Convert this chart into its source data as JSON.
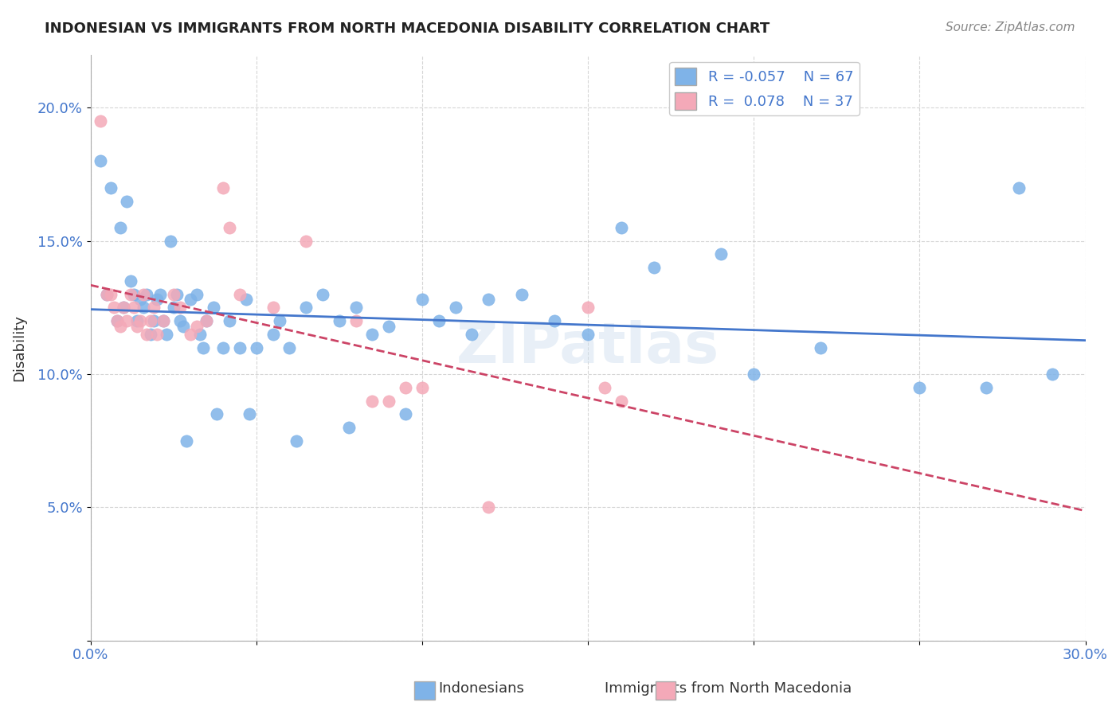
{
  "title": "INDONESIAN VS IMMIGRANTS FROM NORTH MACEDONIA DISABILITY CORRELATION CHART",
  "source": "Source: ZipAtlas.com",
  "ylabel": "Disability",
  "xlabel": "",
  "xlim": [
    0.0,
    0.3
  ],
  "ylim": [
    0.0,
    0.22
  ],
  "xticks": [
    0.0,
    0.05,
    0.1,
    0.15,
    0.2,
    0.25,
    0.3
  ],
  "yticks": [
    0.0,
    0.05,
    0.1,
    0.15,
    0.2
  ],
  "ytick_labels": [
    "",
    "5.0%",
    "10.0%",
    "15.0%",
    "20.0%"
  ],
  "xtick_labels": [
    "0.0%",
    "",
    "",
    "",
    "",
    "",
    "30.0%"
  ],
  "legend_r1": "R = -0.057",
  "legend_n1": "N = 67",
  "legend_r2": "R =  0.078",
  "legend_n2": "N = 37",
  "blue_color": "#7FB3E8",
  "pink_color": "#F4A9B8",
  "line_blue": "#4477CC",
  "line_pink": "#CC4466",
  "watermark": "ZIPatlas",
  "blue_scatter_x": [
    0.005,
    0.008,
    0.01,
    0.012,
    0.013,
    0.014,
    0.015,
    0.016,
    0.017,
    0.018,
    0.019,
    0.02,
    0.021,
    0.022,
    0.023,
    0.025,
    0.026,
    0.027,
    0.028,
    0.03,
    0.032,
    0.033,
    0.034,
    0.035,
    0.037,
    0.04,
    0.042,
    0.045,
    0.047,
    0.05,
    0.055,
    0.057,
    0.06,
    0.065,
    0.07,
    0.075,
    0.08,
    0.085,
    0.09,
    0.1,
    0.105,
    0.11,
    0.115,
    0.12,
    0.13,
    0.14,
    0.15,
    0.17,
    0.19,
    0.2,
    0.22,
    0.25,
    0.27,
    0.28,
    0.003,
    0.006,
    0.009,
    0.011,
    0.024,
    0.029,
    0.038,
    0.048,
    0.062,
    0.078,
    0.095,
    0.16,
    0.29
  ],
  "blue_scatter_y": [
    0.13,
    0.12,
    0.125,
    0.135,
    0.13,
    0.12,
    0.128,
    0.125,
    0.13,
    0.115,
    0.12,
    0.128,
    0.13,
    0.12,
    0.115,
    0.125,
    0.13,
    0.12,
    0.118,
    0.128,
    0.13,
    0.115,
    0.11,
    0.12,
    0.125,
    0.11,
    0.12,
    0.11,
    0.128,
    0.11,
    0.115,
    0.12,
    0.11,
    0.125,
    0.13,
    0.12,
    0.125,
    0.115,
    0.118,
    0.128,
    0.12,
    0.125,
    0.115,
    0.128,
    0.13,
    0.12,
    0.115,
    0.14,
    0.145,
    0.1,
    0.11,
    0.095,
    0.095,
    0.17,
    0.18,
    0.17,
    0.155,
    0.165,
    0.15,
    0.075,
    0.085,
    0.085,
    0.075,
    0.08,
    0.085,
    0.155,
    0.1
  ],
  "pink_scatter_x": [
    0.003,
    0.005,
    0.006,
    0.007,
    0.008,
    0.009,
    0.01,
    0.011,
    0.012,
    0.013,
    0.014,
    0.015,
    0.016,
    0.017,
    0.018,
    0.019,
    0.02,
    0.022,
    0.025,
    0.027,
    0.03,
    0.032,
    0.035,
    0.04,
    0.042,
    0.045,
    0.055,
    0.065,
    0.08,
    0.085,
    0.09,
    0.095,
    0.1,
    0.12,
    0.15,
    0.155,
    0.16
  ],
  "pink_scatter_y": [
    0.195,
    0.13,
    0.13,
    0.125,
    0.12,
    0.118,
    0.125,
    0.12,
    0.13,
    0.125,
    0.118,
    0.12,
    0.13,
    0.115,
    0.12,
    0.125,
    0.115,
    0.12,
    0.13,
    0.125,
    0.115,
    0.118,
    0.12,
    0.17,
    0.155,
    0.13,
    0.125,
    0.15,
    0.12,
    0.09,
    0.09,
    0.095,
    0.095,
    0.05,
    0.125,
    0.095,
    0.09
  ]
}
